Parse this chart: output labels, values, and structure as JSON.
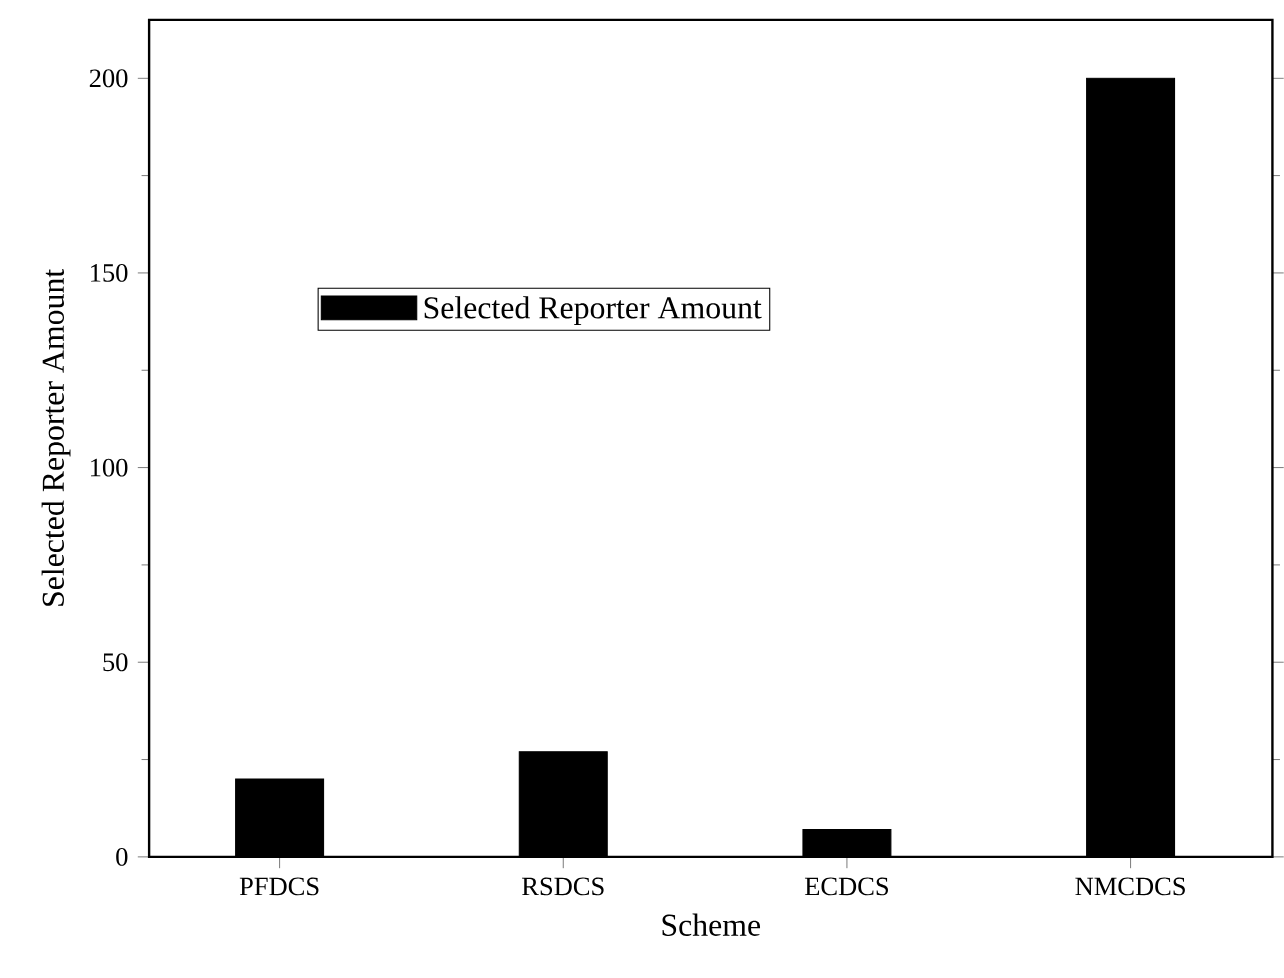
{
  "chart_data": {
    "type": "bar",
    "xlabel": "Scheme",
    "ylabel": "Selected Reporter Amount",
    "categories": [
      "PFDCS",
      "RSDCS",
      "ECDCS",
      "NMCDCS"
    ],
    "series": [
      {
        "name": "Selected Reporter Amount",
        "color": "#000000",
        "values": [
          20,
          27,
          7,
          200
        ]
      }
    ],
    "ylim": [
      0,
      215
    ],
    "yticks": [
      0,
      50,
      100,
      150,
      200
    ],
    "grid": false,
    "legend": "left"
  }
}
